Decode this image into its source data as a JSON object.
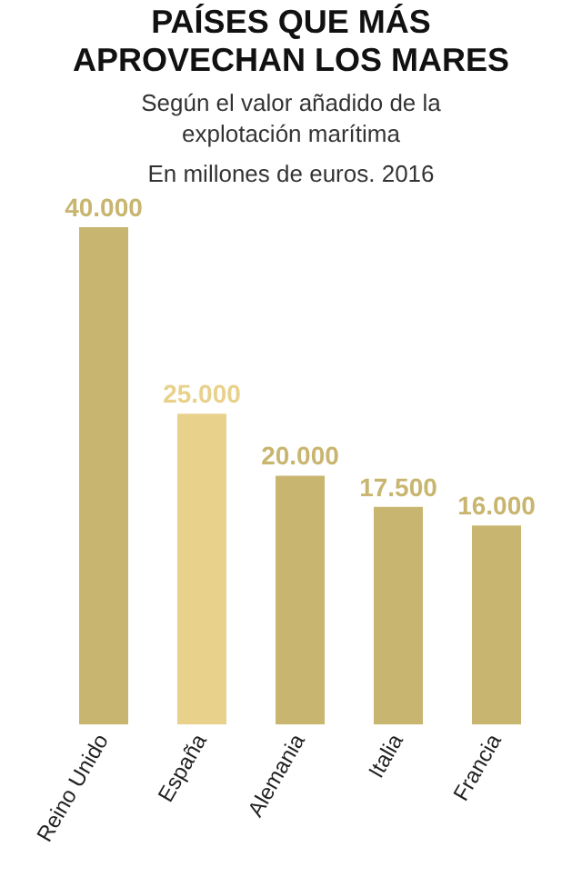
{
  "chart_data": {
    "type": "bar",
    "title": "PAÍSES QUE MÁS APROVECHAN LOS MARES",
    "subtitle": "Según el valor añadido de la explotación marítima",
    "annotations": [
      "En millones de euros. 2016"
    ],
    "categories": [
      "Reino Unido",
      "España",
      "Alemania",
      "Italia",
      "Francia"
    ],
    "values": [
      40000,
      25000,
      20000,
      17500,
      16000
    ],
    "colors": [
      "#c8b56f",
      "#e8d18b",
      "#c8b56f",
      "#c8b56f",
      "#c8b56f"
    ],
    "value_labels": [
      "40.000",
      "25.000",
      "20.000",
      "17.500",
      "16.000"
    ],
    "grid": false,
    "legend": false,
    "tick_labels": "x"
  }
}
